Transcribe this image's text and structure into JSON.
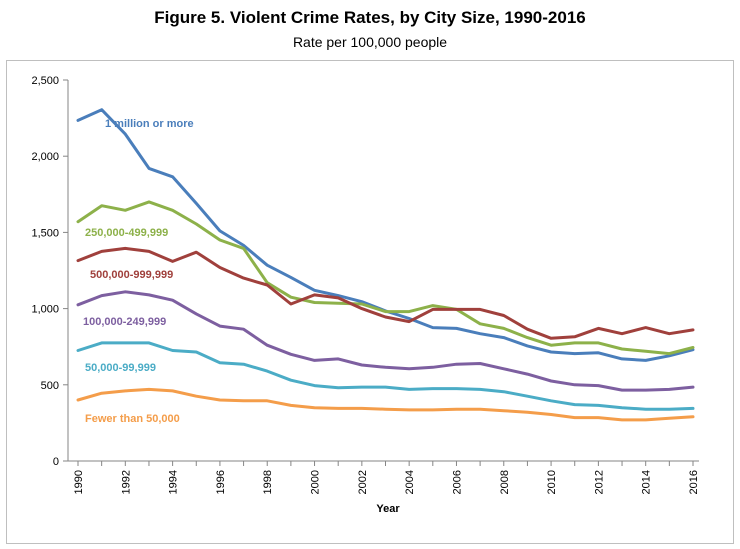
{
  "chart_data": {
    "type": "line",
    "title": "Figure 5. Violent Crime Rates, by City Size, 1990-2016",
    "subtitle": "Rate per 100,000 people",
    "xlabel": "Year",
    "ylabel": "",
    "x": [
      1990,
      1991,
      1992,
      1993,
      1994,
      1995,
      1996,
      1997,
      1998,
      1999,
      2000,
      2001,
      2002,
      2003,
      2004,
      2005,
      2006,
      2007,
      2008,
      2009,
      2010,
      2011,
      2012,
      2013,
      2014,
      2015,
      2016
    ],
    "x_tick_labels": [
      "1990",
      "1992",
      "1994",
      "1996",
      "1998",
      "2000",
      "2002",
      "2004",
      "2006",
      "2008",
      "2010",
      "2012",
      "2014",
      "2016"
    ],
    "ylim": [
      0,
      2500
    ],
    "y_ticks": [
      0,
      500,
      1000,
      1500,
      2000,
      2500
    ],
    "y_tick_labels": [
      "0",
      "500",
      "1,000",
      "1,500",
      "2,000",
      "2,500"
    ],
    "grid": false,
    "series": [
      {
        "name": "1 million or more",
        "color": "#4a7ebb",
        "values": [
          2235,
          2305,
          2145,
          1920,
          1865,
          1690,
          1510,
          1415,
          1285,
          1205,
          1120,
          1085,
          1045,
          985,
          935,
          875,
          870,
          835,
          810,
          755,
          715,
          705,
          710,
          670,
          660,
          690,
          730
        ]
      },
      {
        "name": "250,000-499,999",
        "color": "#8db14a",
        "values": [
          1570,
          1675,
          1645,
          1700,
          1645,
          1555,
          1450,
          1395,
          1170,
          1075,
          1040,
          1035,
          1030,
          980,
          980,
          1020,
          995,
          900,
          870,
          810,
          760,
          775,
          775,
          735,
          720,
          705,
          745
        ]
      },
      {
        "name": "500,000-999,999",
        "color": "#a0403c",
        "values": [
          1315,
          1375,
          1395,
          1375,
          1310,
          1370,
          1270,
          1200,
          1155,
          1030,
          1090,
          1070,
          1000,
          945,
          915,
          995,
          995,
          995,
          955,
          865,
          805,
          815,
          870,
          835,
          875,
          835,
          860
        ]
      },
      {
        "name": "100,000-249,999",
        "color": "#7d5fa0",
        "values": [
          1025,
          1085,
          1110,
          1090,
          1055,
          965,
          885,
          865,
          760,
          700,
          660,
          670,
          630,
          615,
          605,
          615,
          635,
          640,
          605,
          570,
          525,
          500,
          495,
          465,
          465,
          470,
          485
        ]
      },
      {
        "name": "50,000-99,999",
        "color": "#4bacc6",
        "values": [
          725,
          775,
          775,
          775,
          725,
          715,
          645,
          635,
          590,
          530,
          495,
          480,
          485,
          485,
          470,
          475,
          475,
          470,
          455,
          425,
          395,
          370,
          365,
          350,
          340,
          340,
          345
        ]
      },
      {
        "name": "Fewer than 50,000",
        "color": "#f49d4a",
        "values": [
          400,
          445,
          460,
          470,
          460,
          425,
          400,
          395,
          395,
          365,
          350,
          345,
          345,
          340,
          335,
          335,
          340,
          340,
          330,
          320,
          305,
          285,
          285,
          270,
          270,
          280,
          290
        ]
      }
    ]
  }
}
